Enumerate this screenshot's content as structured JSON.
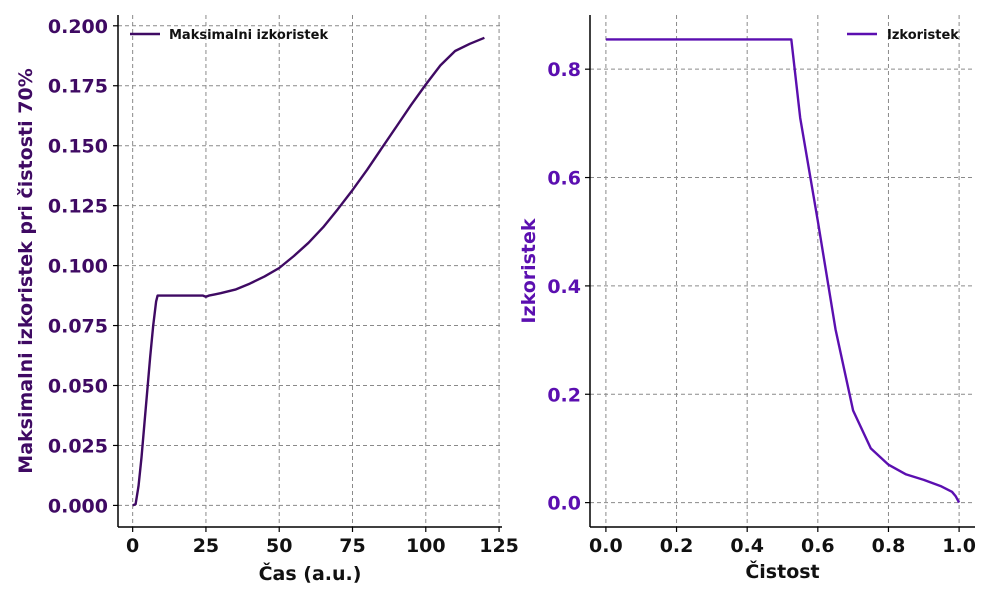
{
  "colors": {
    "left_series": "#3f0a63",
    "right_series": "#5b0fb0",
    "grid": "#8a8a8a",
    "text_dark": "#111111"
  },
  "chart_data": [
    {
      "type": "line",
      "title": "",
      "xlabel": "Čas (a.u.)",
      "ylabel": "Maksimalni izkoristek pri čistosti 70%",
      "xlim": [
        -5,
        126
      ],
      "ylim": [
        -0.009,
        0.2045
      ],
      "xticks": [
        0,
        25,
        50,
        75,
        100,
        125
      ],
      "xtick_labels": [
        "0",
        "25",
        "50",
        "75",
        "100",
        "125"
      ],
      "yticks": [
        0.0,
        0.025,
        0.05,
        0.075,
        0.1,
        0.125,
        0.15,
        0.175,
        0.2
      ],
      "ytick_labels": [
        "0.000",
        "0.025",
        "0.050",
        "0.075",
        "0.100",
        "0.125",
        "0.150",
        "0.175",
        "0.200"
      ],
      "grid": true,
      "legend": "top-left",
      "series": [
        {
          "name": "Maksimalni izkoristek",
          "x": [
            0,
            1,
            2,
            3,
            4,
            5,
            6,
            7,
            8,
            8.5,
            10,
            15,
            20,
            24,
            25,
            26,
            28,
            30,
            35,
            40,
            45,
            50,
            55,
            60,
            65,
            70,
            75,
            80,
            85,
            90,
            95,
            100,
            105,
            110,
            115,
            120
          ],
          "y": [
            0.0,
            0.0005,
            0.008,
            0.02,
            0.034,
            0.048,
            0.062,
            0.075,
            0.085,
            0.0875,
            0.0875,
            0.0875,
            0.0875,
            0.0875,
            0.087,
            0.0875,
            0.088,
            0.0885,
            0.09,
            0.0925,
            0.0955,
            0.099,
            0.104,
            0.1095,
            0.116,
            0.1235,
            0.1315,
            0.14,
            0.149,
            0.158,
            0.167,
            0.1755,
            0.1835,
            0.1895,
            0.1925,
            0.195
          ]
        }
      ]
    },
    {
      "type": "line",
      "title": "",
      "xlabel": "Čistost",
      "ylabel": "Izkoristek",
      "xlim": [
        -0.045,
        1.045
      ],
      "ylim": [
        -0.045,
        0.9
      ],
      "xticks": [
        0.0,
        0.2,
        0.4,
        0.6,
        0.8,
        1.0
      ],
      "xtick_labels": [
        "0.0",
        "0.2",
        "0.4",
        "0.6",
        "0.8",
        "1.0"
      ],
      "yticks": [
        0.0,
        0.2,
        0.4,
        0.6,
        0.8
      ],
      "ytick_labels": [
        "0.0",
        "0.2",
        "0.4",
        "0.6",
        "0.8"
      ],
      "grid": true,
      "legend": "top-right",
      "series": [
        {
          "name": "Izkoristek",
          "x": [
            0.0,
            0.1,
            0.2,
            0.3,
            0.4,
            0.5,
            0.525,
            0.55,
            0.6,
            0.65,
            0.7,
            0.75,
            0.8,
            0.85,
            0.9,
            0.95,
            0.98,
            0.99,
            1.0
          ],
          "y": [
            0.855,
            0.855,
            0.855,
            0.855,
            0.855,
            0.855,
            0.855,
            0.71,
            0.52,
            0.32,
            0.17,
            0.1,
            0.07,
            0.052,
            0.042,
            0.03,
            0.02,
            0.012,
            0.0
          ]
        }
      ]
    }
  ]
}
